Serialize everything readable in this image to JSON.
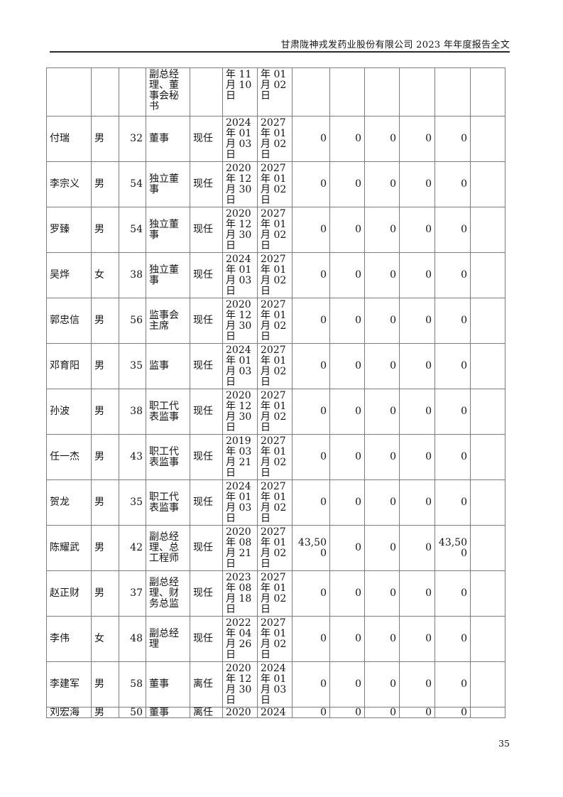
{
  "page": {
    "header_title": "甘肃陇神戎发药业股份有限公司 2023 年年度报告全文",
    "page_number": "35"
  },
  "table": {
    "rows": [
      {
        "type": "partial-top",
        "cells": [
          "",
          "",
          "",
          "副总经理、董事会秘书",
          "",
          "年 11 月 10 日",
          "年 01 月 02 日",
          "",
          "",
          "",
          "",
          "",
          ""
        ]
      },
      {
        "type": "full",
        "cells": [
          "付瑞",
          "男",
          "32",
          "董事",
          "现任",
          "2024 年 01 月 03 日",
          "2027 年 01 月 02 日",
          "0",
          "0",
          "0",
          "0",
          "0",
          ""
        ]
      },
      {
        "type": "full",
        "cells": [
          "李宗义",
          "男",
          "54",
          "独立董事",
          "现任",
          "2020 年 12 月 30 日",
          "2027 年 01 月 02 日",
          "0",
          "0",
          "0",
          "0",
          "0",
          ""
        ]
      },
      {
        "type": "full",
        "cells": [
          "罗臻",
          "男",
          "54",
          "独立董事",
          "现任",
          "2020 年 12 月 30 日",
          "2027 年 01 月 02 日",
          "0",
          "0",
          "0",
          "0",
          "0",
          ""
        ]
      },
      {
        "type": "full",
        "cells": [
          "吴烨",
          "女",
          "38",
          "独立董事",
          "现任",
          "2024 年 01 月 03 日",
          "2027 年 01 月 02 日",
          "0",
          "0",
          "0",
          "0",
          "0",
          ""
        ]
      },
      {
        "type": "full",
        "cells": [
          "郭忠信",
          "男",
          "56",
          "监事会主席",
          "现任",
          "2020 年 12 月 30 日",
          "2027 年 01 月 02 日",
          "0",
          "0",
          "0",
          "0",
          "0",
          ""
        ]
      },
      {
        "type": "full",
        "cells": [
          "邓育阳",
          "男",
          "35",
          "监事",
          "现任",
          "2024 年 01 月 03 日",
          "2027 年 01 月 02 日",
          "0",
          "0",
          "0",
          "0",
          "0",
          ""
        ]
      },
      {
        "type": "full",
        "cells": [
          "孙波",
          "男",
          "38",
          "职工代表监事",
          "现任",
          "2020 年 12 月 30 日",
          "2027 年 01 月 02 日",
          "0",
          "0",
          "0",
          "0",
          "0",
          ""
        ]
      },
      {
        "type": "full",
        "cells": [
          "任一杰",
          "男",
          "43",
          "职工代表监事",
          "现任",
          "2019 年 03 月 21 日",
          "2027 年 01 月 02 日",
          "0",
          "0",
          "0",
          "0",
          "0",
          ""
        ]
      },
      {
        "type": "full",
        "cells": [
          "贺龙",
          "男",
          "35",
          "职工代表监事",
          "现任",
          "2024 年 01 月 03 日",
          "2027 年 01 月 02 日",
          "0",
          "0",
          "0",
          "0",
          "0",
          ""
        ]
      },
      {
        "type": "full",
        "cells": [
          "陈耀武",
          "男",
          "42",
          "副总经理、总工程师",
          "现任",
          "2020 年 08 月 21 日",
          "2027 年 01 月 02 日",
          "43,500",
          "0",
          "0",
          "0",
          "43,500",
          ""
        ]
      },
      {
        "type": "full",
        "cells": [
          "赵正财",
          "男",
          "37",
          "副总经理、财务总监",
          "现任",
          "2023 年 08 月 18 日",
          "2027 年 01 月 02 日",
          "0",
          "0",
          "0",
          "0",
          "0",
          ""
        ]
      },
      {
        "type": "full",
        "cells": [
          "李伟",
          "女",
          "48",
          "副总经理",
          "现任",
          "2022 年 04 月 26 日",
          "2027 年 01 月 02 日",
          "0",
          "0",
          "0",
          "0",
          "0",
          ""
        ]
      },
      {
        "type": "full",
        "cells": [
          "李建军",
          "男",
          "58",
          "董事",
          "离任",
          "2020 年 12 月 30 日",
          "2024 年 01 月 03 日",
          "0",
          "0",
          "0",
          "0",
          "0",
          ""
        ]
      },
      {
        "type": "partial-bottom",
        "cells": [
          "刘宏海",
          "男",
          "50",
          "董事",
          "离任",
          "2020",
          "2024",
          "0",
          "0",
          "0",
          "0",
          "0",
          ""
        ]
      }
    ]
  }
}
